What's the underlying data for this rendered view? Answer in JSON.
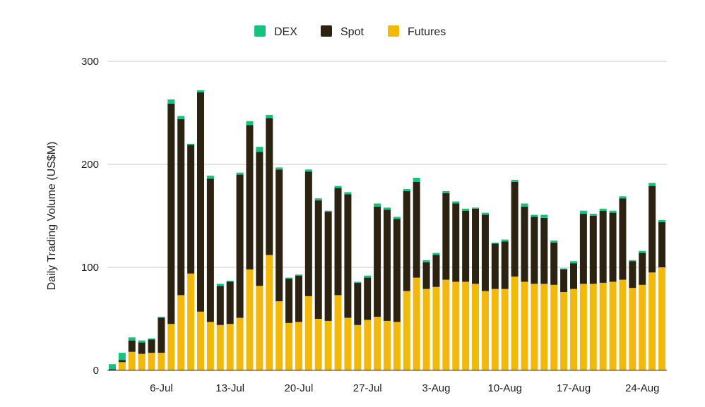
{
  "chart_data": {
    "type": "bar",
    "stacked": true,
    "ylabel": "Daily Trading Volume (US$M)",
    "xlabel": "",
    "ylim": [
      0,
      300
    ],
    "yticks": [
      "0",
      "100",
      "200",
      "300"
    ],
    "grid": true,
    "legend_position": "top",
    "tick_labels": [
      "6-Jul",
      "13-Jul",
      "20-Jul",
      "27-Jul",
      "3-Aug",
      "10-Aug",
      "17-Aug",
      "24-Aug"
    ],
    "tick_indices": [
      5,
      12,
      19,
      26,
      33,
      40,
      47,
      54
    ],
    "categories": [
      "1-Jul",
      "2-Jul",
      "3-Jul",
      "4-Jul",
      "5-Jul",
      "6-Jul",
      "7-Jul",
      "8-Jul",
      "9-Jul",
      "10-Jul",
      "11-Jul",
      "12-Jul",
      "13-Jul",
      "14-Jul",
      "15-Jul",
      "16-Jul",
      "17-Jul",
      "18-Jul",
      "19-Jul",
      "20-Jul",
      "21-Jul",
      "22-Jul",
      "23-Jul",
      "24-Jul",
      "25-Jul",
      "26-Jul",
      "27-Jul",
      "28-Jul",
      "29-Jul",
      "30-Jul",
      "31-Jul",
      "1-Aug",
      "2-Aug",
      "3-Aug",
      "4-Aug",
      "5-Aug",
      "6-Aug",
      "7-Aug",
      "8-Aug",
      "9-Aug",
      "10-Aug",
      "11-Aug",
      "12-Aug",
      "13-Aug",
      "14-Aug",
      "15-Aug",
      "16-Aug",
      "17-Aug",
      "18-Aug",
      "19-Aug",
      "20-Aug",
      "21-Aug",
      "22-Aug",
      "23-Aug",
      "24-Aug",
      "25-Aug",
      "26-Aug"
    ],
    "series": [
      {
        "name": "Futures",
        "color": "#F2B90C",
        "values": [
          0,
          8,
          18,
          16,
          17,
          17,
          45,
          73,
          94,
          57,
          47,
          44,
          45,
          51,
          98,
          82,
          112,
          67,
          46,
          47,
          72,
          50,
          48,
          73,
          51,
          44,
          49,
          52,
          48,
          47,
          77,
          90,
          79,
          81,
          88,
          86,
          86,
          84,
          77,
          79,
          79,
          91,
          86,
          84,
          84,
          83,
          76,
          79,
          84,
          84,
          85,
          86,
          88,
          80,
          83,
          95,
          100
        ]
      },
      {
        "name": "Spot",
        "color": "#2B2211",
        "values": [
          1,
          2,
          11,
          11,
          13,
          34,
          214,
          171,
          125,
          213,
          139,
          38,
          41,
          139,
          140,
          130,
          133,
          128,
          43,
          45,
          121,
          115,
          106,
          104,
          120,
          41,
          41,
          107,
          108,
          100,
          97,
          93,
          26,
          31,
          84,
          76,
          69,
          73,
          74,
          44,
          46,
          92,
          73,
          65,
          64,
          41,
          22,
          25,
          68,
          66,
          70,
          67,
          79,
          26,
          31,
          84,
          44
        ]
      },
      {
        "name": "DEX",
        "color": "#15C27E",
        "values": [
          5,
          7,
          3,
          2,
          1,
          1,
          4,
          3,
          1,
          2,
          3,
          2,
          1,
          2,
          4,
          5,
          3,
          2,
          1,
          1,
          2,
          2,
          1,
          2,
          2,
          1,
          2,
          3,
          2,
          2,
          2,
          4,
          2,
          2,
          2,
          2,
          2,
          1,
          2,
          1,
          2,
          2,
          3,
          2,
          3,
          2,
          1,
          2,
          3,
          2,
          2,
          2,
          2,
          1,
          2,
          3,
          2
        ]
      }
    ],
    "legend": [
      {
        "name": "DEX",
        "color": "#15C27E"
      },
      {
        "name": "Spot",
        "color": "#2B2211"
      },
      {
        "name": "Futures",
        "color": "#F2B90C"
      }
    ]
  }
}
